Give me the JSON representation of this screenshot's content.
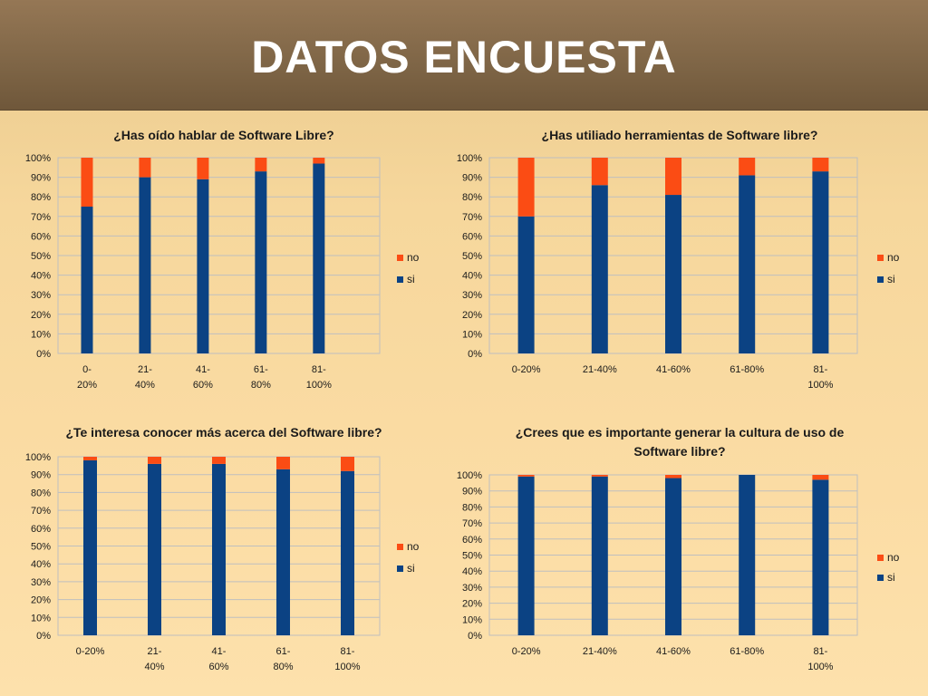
{
  "slide": {
    "title": "DATOS ENCUESTA"
  },
  "colors": {
    "si": "#0b4283",
    "no": "#fb4c14"
  },
  "chart_data": [
    {
      "type": "bar",
      "stacked": true,
      "percent": true,
      "title": "¿Has oído hablar de Software Libre?",
      "categories": [
        "0-20%",
        "21-40%",
        "41-60%",
        "61-80%",
        "81-100%"
      ],
      "category_labels": [
        [
          "0-",
          "20%"
        ],
        [
          "21-",
          "40%"
        ],
        [
          "41-",
          "60%"
        ],
        [
          "61-",
          "80%"
        ],
        [
          "81-",
          "100%"
        ]
      ],
      "series": [
        {
          "name": "si",
          "values": [
            75,
            90,
            89,
            93,
            97
          ]
        },
        {
          "name": "no",
          "values": [
            25,
            10,
            11,
            7,
            3
          ]
        }
      ],
      "ylim": [
        0,
        100
      ],
      "y_ticks": [
        "0%",
        "10%",
        "20%",
        "30%",
        "40%",
        "50%",
        "60%",
        "70%",
        "80%",
        "90%",
        "100%"
      ],
      "grid": true,
      "legend": "right"
    },
    {
      "type": "bar",
      "stacked": true,
      "percent": true,
      "title": "¿Has utiliado herramientas de Software libre?",
      "categories": [
        "0-20%",
        "21-40%",
        "41-60%",
        "61-80%",
        "81-100%"
      ],
      "category_labels": [
        [
          "0-20%"
        ],
        [
          "21-40%"
        ],
        [
          "41-60%"
        ],
        [
          "61-80%"
        ],
        [
          "81-",
          "100%"
        ]
      ],
      "series": [
        {
          "name": "si",
          "values": [
            70,
            86,
            81,
            91,
            93
          ]
        },
        {
          "name": "no",
          "values": [
            30,
            14,
            19,
            9,
            7
          ]
        }
      ],
      "ylim": [
        0,
        100
      ],
      "y_ticks": [
        "0%",
        "10%",
        "20%",
        "30%",
        "40%",
        "50%",
        "60%",
        "70%",
        "80%",
        "90%",
        "100%"
      ],
      "grid": true,
      "legend": "right"
    },
    {
      "type": "bar",
      "stacked": true,
      "percent": true,
      "title": "¿Te interesa conocer más acerca del Software libre?",
      "categories": [
        "0-20%",
        "21-40%",
        "41-60%",
        "61-80%",
        "81-100%"
      ],
      "category_labels": [
        [
          "0-20%"
        ],
        [
          "21-",
          "40%"
        ],
        [
          "41-",
          "60%"
        ],
        [
          "61-",
          "80%"
        ],
        [
          "81-",
          "100%"
        ]
      ],
      "series": [
        {
          "name": "si",
          "values": [
            98,
            96,
            96,
            93,
            92
          ]
        },
        {
          "name": "no",
          "values": [
            2,
            4,
            4,
            7,
            8
          ]
        }
      ],
      "ylim": [
        0,
        100
      ],
      "y_ticks": [
        "0%",
        "10%",
        "20%",
        "30%",
        "40%",
        "50%",
        "60%",
        "70%",
        "80%",
        "90%",
        "100%"
      ],
      "grid": true,
      "legend": "right"
    },
    {
      "type": "bar",
      "stacked": true,
      "percent": true,
      "title": "¿Crees que es importante generar la cultura de uso de Software libre?",
      "title_lines": [
        "¿Crees que es importante generar la cultura de uso de",
        "Software libre?"
      ],
      "categories": [
        "0-20%",
        "21-40%",
        "41-60%",
        "61-80%",
        "81-100%"
      ],
      "category_labels": [
        [
          "0-20%"
        ],
        [
          "21-40%"
        ],
        [
          "41-60%"
        ],
        [
          "61-80%"
        ],
        [
          "81-",
          "100%"
        ]
      ],
      "series": [
        {
          "name": "si",
          "values": [
            99,
            99,
            98,
            100,
            97
          ]
        },
        {
          "name": "no",
          "values": [
            1,
            1,
            2,
            0,
            3
          ]
        }
      ],
      "ylim": [
        0,
        100
      ],
      "y_ticks": [
        "0%",
        "10%",
        "20%",
        "30%",
        "40%",
        "50%",
        "60%",
        "70%",
        "80%",
        "90%",
        "100%"
      ],
      "grid": true,
      "legend": "right"
    }
  ]
}
